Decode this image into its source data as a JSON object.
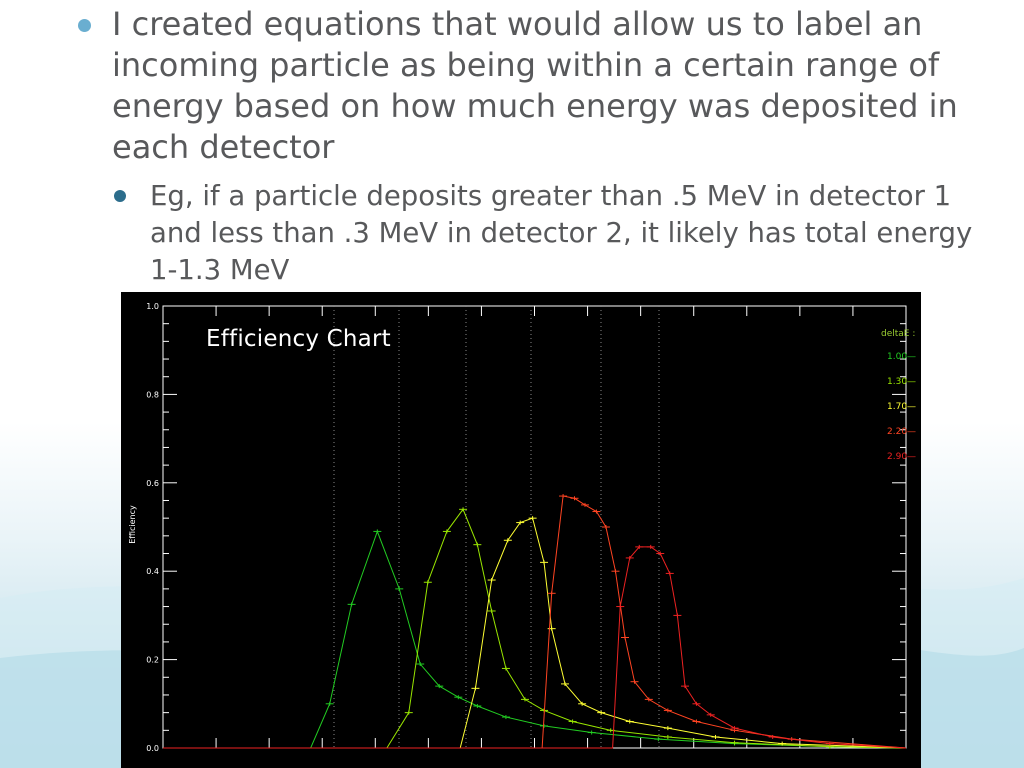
{
  "slide": {
    "bullet1": "I created equations that would allow us to label an incoming particle as being within a certain range of energy based on how much energy was deposited in each detector",
    "bullet2": "Eg, if a particle deposits greater than .5 MeV in detector 1 and less than .3 MeV in detector 2, it likely has total energy 1-1.3 MeV",
    "bullet_color": "#6aaed0",
    "sub_bullet_color": "#2c6d8c",
    "text_color": "#58595b"
  },
  "chart_data": {
    "type": "line",
    "title": "Efficiency Chart",
    "ylabel": "Efficiency",
    "xlabel": "",
    "ylim": [
      0,
      1.0
    ],
    "yticks": [
      "0.0",
      "0.2",
      "0.4",
      "0.6",
      "0.8",
      "1.0"
    ],
    "legend_title": "deltaE :",
    "legend_position": "top-right",
    "grid": "vertical dotted lines",
    "series": [
      {
        "name": "1.00",
        "color": "#22cc22",
        "points": [
          [
            0,
            0
          ],
          [
            120,
            0
          ],
          [
            155,
            0
          ],
          [
            175,
            0.1
          ],
          [
            198,
            0.325
          ],
          [
            225,
            0.49
          ],
          [
            248,
            0.36
          ],
          [
            270,
            0.19
          ],
          [
            290,
            0.14
          ],
          [
            310,
            0.115
          ],
          [
            330,
            0.095
          ],
          [
            360,
            0.07
          ],
          [
            400,
            0.05
          ],
          [
            450,
            0.035
          ],
          [
            520,
            0.02
          ],
          [
            600,
            0.01
          ],
          [
            700,
            0.003
          ],
          [
            780,
            0
          ]
        ]
      },
      {
        "name": "1.30",
        "color": "#99e600",
        "points": [
          [
            0,
            0
          ],
          [
            200,
            0
          ],
          [
            235,
            0
          ],
          [
            258,
            0.08
          ],
          [
            278,
            0.375
          ],
          [
            298,
            0.49
          ],
          [
            315,
            0.54
          ],
          [
            330,
            0.46
          ],
          [
            345,
            0.31
          ],
          [
            360,
            0.18
          ],
          [
            380,
            0.11
          ],
          [
            400,
            0.085
          ],
          [
            430,
            0.06
          ],
          [
            470,
            0.04
          ],
          [
            530,
            0.025
          ],
          [
            600,
            0.012
          ],
          [
            700,
            0.003
          ],
          [
            780,
            0
          ]
        ]
      },
      {
        "name": "1.70",
        "color": "#ffff33",
        "points": [
          [
            0,
            0
          ],
          [
            280,
            0
          ],
          [
            312,
            0
          ],
          [
            328,
            0.135
          ],
          [
            345,
            0.38
          ],
          [
            362,
            0.47
          ],
          [
            375,
            0.51
          ],
          [
            388,
            0.52
          ],
          [
            400,
            0.42
          ],
          [
            408,
            0.27
          ],
          [
            422,
            0.145
          ],
          [
            440,
            0.1
          ],
          [
            460,
            0.08
          ],
          [
            490,
            0.06
          ],
          [
            530,
            0.045
          ],
          [
            580,
            0.025
          ],
          [
            650,
            0.01
          ],
          [
            780,
            0
          ]
        ]
      },
      {
        "name": "2.20",
        "color": "#ff4422",
        "points": [
          [
            0,
            0
          ],
          [
            370,
            0
          ],
          [
            398,
            0
          ],
          [
            408,
            0.35
          ],
          [
            420,
            0.57
          ],
          [
            432,
            0.565
          ],
          [
            443,
            0.55
          ],
          [
            455,
            0.535
          ],
          [
            465,
            0.5
          ],
          [
            475,
            0.4
          ],
          [
            485,
            0.25
          ],
          [
            495,
            0.15
          ],
          [
            510,
            0.11
          ],
          [
            530,
            0.085
          ],
          [
            560,
            0.06
          ],
          [
            600,
            0.04
          ],
          [
            660,
            0.02
          ],
          [
            780,
            0
          ]
        ]
      },
      {
        "name": "2.90",
        "color": "#ee2222",
        "points": [
          [
            0,
            0
          ],
          [
            450,
            0
          ],
          [
            472,
            0
          ],
          [
            480,
            0.32
          ],
          [
            490,
            0.43
          ],
          [
            500,
            0.455
          ],
          [
            512,
            0.455
          ],
          [
            522,
            0.44
          ],
          [
            532,
            0.395
          ],
          [
            540,
            0.3
          ],
          [
            548,
            0.14
          ],
          [
            560,
            0.1
          ],
          [
            575,
            0.075
          ],
          [
            600,
            0.045
          ],
          [
            640,
            0.025
          ],
          [
            700,
            0.01
          ],
          [
            780,
            0
          ]
        ]
      }
    ]
  }
}
